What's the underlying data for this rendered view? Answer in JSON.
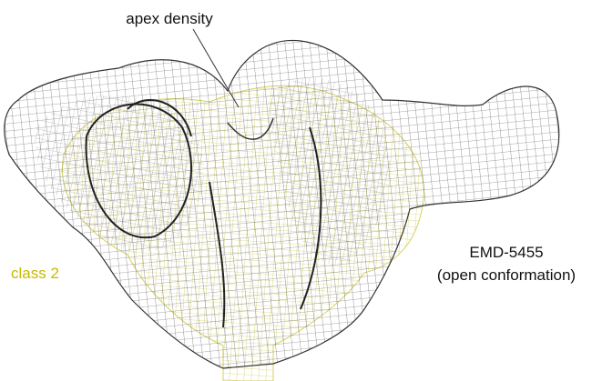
{
  "labels": {
    "apex": "apex density",
    "class": "class 2",
    "map_id": "EMD-5455",
    "map_state": "(open conformation)"
  }
}
